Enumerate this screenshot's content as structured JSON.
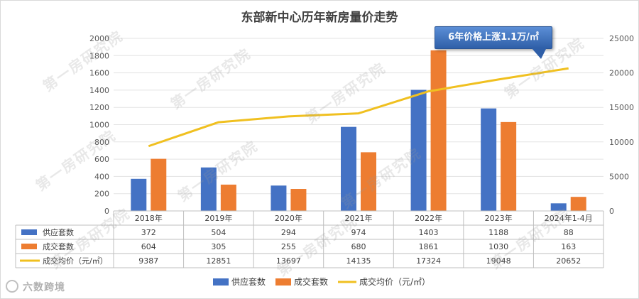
{
  "title": "东部新中心历年新房量价走势",
  "callout": "6年价格上涨1.1万/㎡",
  "watermark": "第一房研究院",
  "logo": "六数跨境",
  "chart_data": {
    "type": "bar",
    "title": "东部新中心历年新房量价走势",
    "categories": [
      "2018年",
      "2019年",
      "2020年",
      "2021年",
      "2022年",
      "2023年",
      "2024年1-4月"
    ],
    "series": [
      {
        "name": "供应套数",
        "type": "bar",
        "axis": "left",
        "color": "#4472c4",
        "values": [
          372,
          504,
          294,
          974,
          1403,
          1188,
          88
        ]
      },
      {
        "name": "成交套数",
        "type": "bar",
        "axis": "left",
        "color": "#ed7d31",
        "values": [
          604,
          305,
          255,
          680,
          1861,
          1030,
          163
        ]
      },
      {
        "name": "成交均价（元/㎡）",
        "type": "line",
        "axis": "right",
        "color": "#f0c020",
        "values": [
          9387,
          12851,
          13697,
          14135,
          17324,
          19048,
          20652
        ]
      }
    ],
    "y_left": {
      "min": 0,
      "max": 2000,
      "step": 200
    },
    "y_right": {
      "min": 0,
      "max": 25000,
      "step": 5000
    },
    "legend": "bottom",
    "data_table": true
  }
}
